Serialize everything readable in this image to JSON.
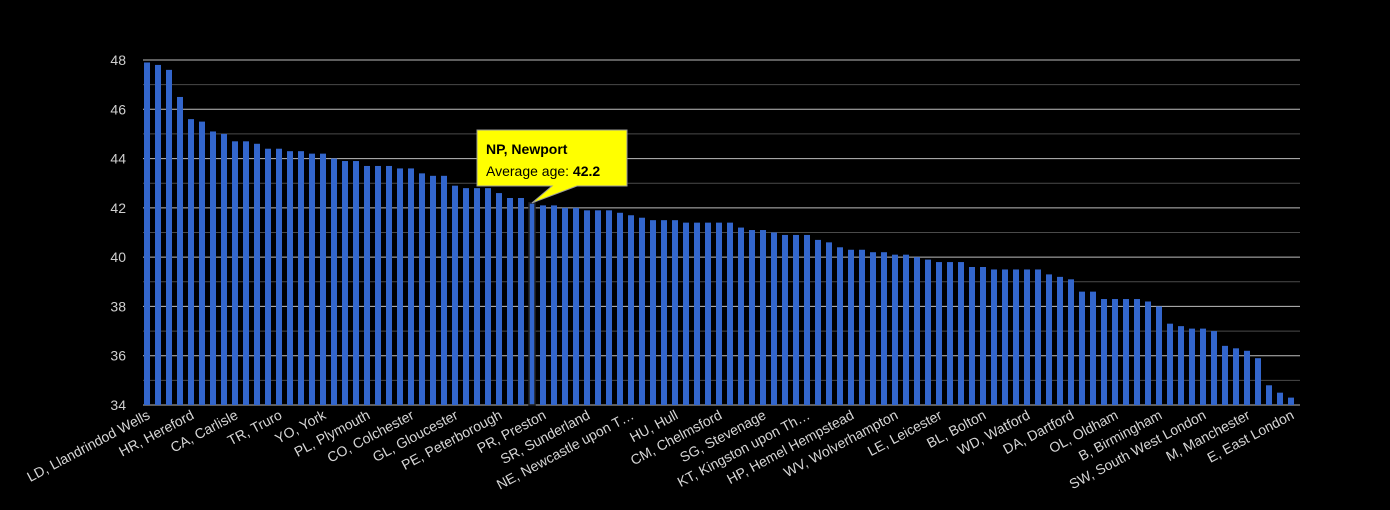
{
  "chart_data": {
    "type": "bar",
    "title": "",
    "xlabel": "",
    "ylabel": "",
    "ylim": [
      34,
      48
    ],
    "yticks": [
      34,
      36,
      38,
      40,
      42,
      44,
      46,
      48
    ],
    "grid": true,
    "bar_color": "#3366cc",
    "background": "#000000",
    "tick_labels": [
      {
        "index": 0,
        "label": "LD, Llandrindod Wells"
      },
      {
        "index": 4,
        "label": "HR, Hereford"
      },
      {
        "index": 8,
        "label": "CA, Carlisle"
      },
      {
        "index": 12,
        "label": "TR, Truro"
      },
      {
        "index": 16,
        "label": "YO, York"
      },
      {
        "index": 20,
        "label": "PL, Plymouth"
      },
      {
        "index": 24,
        "label": "CO, Colchester"
      },
      {
        "index": 28,
        "label": "GL, Gloucester"
      },
      {
        "index": 32,
        "label": "PE, Peterborough"
      },
      {
        "index": 36,
        "label": "PR, Preston"
      },
      {
        "index": 40,
        "label": "SR, Sunderland"
      },
      {
        "index": 44,
        "label": "NE, Newcastle upon T…"
      },
      {
        "index": 48,
        "label": "HU, Hull"
      },
      {
        "index": 52,
        "label": "CM, Chelmsford"
      },
      {
        "index": 56,
        "label": "SG, Stevenage"
      },
      {
        "index": 60,
        "label": "KT, Kingston upon Th…"
      },
      {
        "index": 64,
        "label": "HP, Hemel Hempstead"
      },
      {
        "index": 68,
        "label": "WV, Wolverhampton"
      },
      {
        "index": 72,
        "label": "LE, Leicester"
      },
      {
        "index": 76,
        "label": "BL, Bolton"
      },
      {
        "index": 80,
        "label": "WD, Watford"
      },
      {
        "index": 84,
        "label": "DA, Dartford"
      },
      {
        "index": 88,
        "label": "OL, Oldham"
      },
      {
        "index": 92,
        "label": "B, Birmingham"
      },
      {
        "index": 96,
        "label": "SW, South West London"
      },
      {
        "index": 100,
        "label": "M, Manchester"
      },
      {
        "index": 104,
        "label": "E, East London"
      }
    ],
    "values": [
      47.9,
      47.8,
      47.6,
      46.5,
      45.6,
      45.5,
      45.1,
      45.0,
      44.7,
      44.7,
      44.6,
      44.4,
      44.4,
      44.3,
      44.3,
      44.2,
      44.2,
      44.0,
      43.9,
      43.9,
      43.7,
      43.7,
      43.7,
      43.6,
      43.6,
      43.4,
      43.3,
      43.3,
      42.9,
      42.8,
      42.8,
      42.8,
      42.6,
      42.4,
      42.4,
      42.2,
      42.1,
      42.1,
      42.0,
      42.0,
      41.9,
      41.9,
      41.9,
      41.8,
      41.7,
      41.6,
      41.5,
      41.5,
      41.5,
      41.4,
      41.4,
      41.4,
      41.4,
      41.4,
      41.2,
      41.1,
      41.1,
      41.0,
      40.9,
      40.9,
      40.9,
      40.7,
      40.6,
      40.4,
      40.3,
      40.3,
      40.2,
      40.2,
      40.1,
      40.1,
      40.0,
      39.9,
      39.8,
      39.8,
      39.8,
      39.6,
      39.6,
      39.5,
      39.5,
      39.5,
      39.5,
      39.5,
      39.3,
      39.2,
      39.1,
      38.6,
      38.6,
      38.3,
      38.3,
      38.3,
      38.3,
      38.2,
      38.0,
      37.3,
      37.2,
      37.1,
      37.1,
      37.0,
      36.4,
      36.3,
      36.2,
      35.9,
      34.8,
      34.5,
      34.3
    ],
    "tooltip": {
      "index": 35,
      "title": "NP, Newport",
      "label": "Average age:",
      "value": "42.2",
      "background": "#ffff00"
    }
  }
}
